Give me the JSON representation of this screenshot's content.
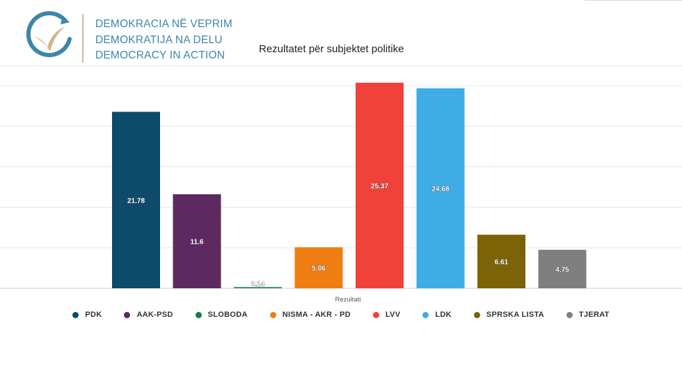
{
  "org": {
    "line1": "DEMOKRACIA NË VEPRIM",
    "line2": "DEMOKRATIJA NA DELU",
    "line3": "DEMOCRACY IN ACTION"
  },
  "colors": {
    "logo_ring": "#3d86a8",
    "logo_bird": "#cdb98a"
  },
  "chart_data": {
    "type": "bar",
    "title": "Rezultatet për subjektet politike",
    "xlabel": "Rezultati",
    "ylabel": "",
    "ylim": [
      0,
      27.5
    ],
    "grid": true,
    "legend_position": "bottom",
    "categories": [
      "PDK",
      "AAK-PSD",
      "SLOBODA",
      "NISMA - AKR - PD",
      "LVV",
      "LDK",
      "SPRSKA LISTA",
      "TJERAT"
    ],
    "values": [
      21.78,
      11.6,
      0.14,
      5.06,
      25.37,
      24.68,
      6.61,
      4.75
    ],
    "value_labels": [
      "21.78",
      "11.6",
      "0.14",
      "5.06",
      "25.37",
      "24.68",
      "6.61",
      "4.75"
    ],
    "colors": [
      "#0d4a6b",
      "#5c2a60",
      "#1e7a46",
      "#f07d12",
      "#f0413a",
      "#3eade5",
      "#7d6307",
      "#7f7f7f"
    ]
  }
}
